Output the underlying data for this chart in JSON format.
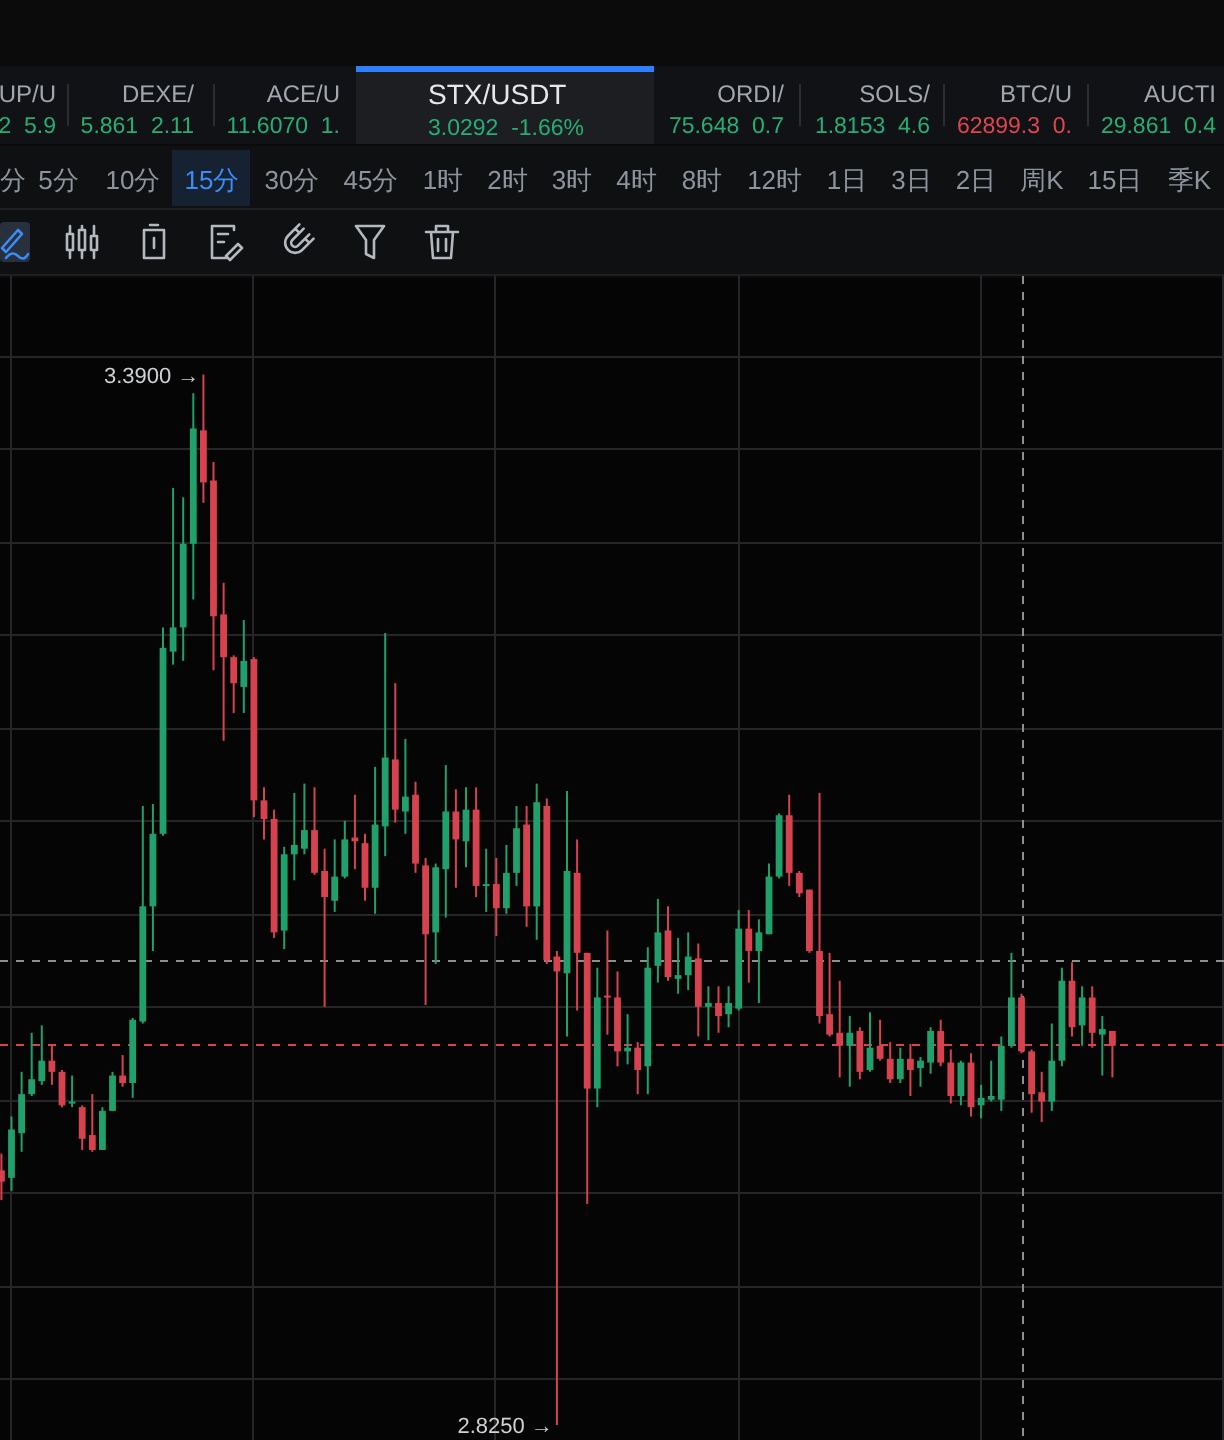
{
  "chart_data": {
    "type": "candlestick",
    "title": "STX/USDT",
    "subtitle": "3.0292  -1.66%",
    "categories": [
      null,
      null,
      null,
      null,
      null,
      null,
      null,
      null,
      null,
      null,
      null,
      null,
      null,
      null,
      null,
      null,
      null,
      null,
      null,
      null,
      null,
      null,
      null,
      null,
      null,
      null,
      null,
      null,
      null,
      null,
      null,
      null,
      null,
      null,
      null,
      null,
      null,
      null,
      null,
      null,
      null,
      null,
      null,
      null,
      null,
      null,
      null,
      null,
      null,
      null,
      null,
      null,
      null,
      null,
      null,
      null,
      null,
      null,
      null,
      null,
      null,
      null,
      null,
      null,
      null,
      null,
      null,
      null,
      null,
      null,
      null,
      null,
      null,
      null,
      null,
      null,
      null,
      null,
      null,
      null,
      null,
      null,
      null,
      null,
      null,
      null,
      null,
      null,
      null,
      null,
      null,
      null,
      null,
      null,
      null,
      null,
      null,
      null,
      null,
      null,
      null,
      null,
      null,
      null,
      null,
      null,
      null,
      null,
      null,
      null,
      null
    ],
    "ohlc": [
      [
        2.962,
        2.971,
        2.946,
        2.956
      ],
      [
        2.958,
        2.991,
        2.951,
        2.984
      ],
      [
        2.982,
        3.015,
        2.972,
        3.003
      ],
      [
        3.003,
        3.036,
        3.002,
        3.011
      ],
      [
        3.01,
        3.04,
        3.008,
        3.021
      ],
      [
        3.021,
        3.029,
        3.008,
        3.015
      ],
      [
        3.015,
        3.016,
        2.996,
        2.997
      ],
      [
        2.998,
        3.013,
        2.996,
        2.999
      ],
      [
        2.996,
        2.997,
        2.973,
        2.979
      ],
      [
        2.981,
        3.003,
        2.972,
        2.973
      ],
      [
        2.973,
        2.996,
        2.973,
        2.994
      ],
      [
        2.994,
        3.015,
        2.994,
        3.013
      ],
      [
        3.013,
        3.024,
        3.007,
        3.009
      ],
      [
        3.009,
        3.044,
        3.001,
        3.043
      ],
      [
        3.042,
        3.158,
        3.041,
        3.104
      ],
      [
        3.104,
        3.159,
        3.08,
        3.143
      ],
      [
        3.143,
        3.254,
        3.142,
        3.243
      ],
      [
        3.241,
        3.329,
        3.234,
        3.254
      ],
      [
        3.254,
        3.324,
        3.236,
        3.299
      ],
      [
        3.299,
        3.38,
        3.269,
        3.361
      ],
      [
        3.36,
        3.39,
        3.321,
        3.332
      ],
      [
        3.333,
        3.343,
        3.231,
        3.26
      ],
      [
        3.261,
        3.278,
        3.193,
        3.238
      ],
      [
        3.238,
        3.239,
        3.208,
        3.224
      ],
      [
        3.222,
        3.258,
        3.208,
        3.236
      ],
      [
        3.237,
        3.238,
        3.152,
        3.161
      ],
      [
        3.161,
        3.168,
        3.14,
        3.151
      ],
      [
        3.151,
        3.156,
        3.087,
        3.09
      ],
      [
        3.091,
        3.136,
        3.081,
        3.132
      ],
      [
        3.132,
        3.165,
        3.118,
        3.137
      ],
      [
        3.135,
        3.17,
        3.132,
        3.145
      ],
      [
        3.145,
        3.168,
        3.121,
        3.122
      ],
      [
        3.123,
        3.135,
        3.05,
        3.109
      ],
      [
        3.107,
        3.14,
        3.101,
        3.12
      ],
      [
        3.12,
        3.15,
        3.119,
        3.14
      ],
      [
        3.141,
        3.164,
        3.124,
        3.139
      ],
      [
        3.138,
        3.143,
        3.107,
        3.114
      ],
      [
        3.114,
        3.179,
        3.1,
        3.148
      ],
      [
        3.147,
        3.251,
        3.131,
        3.184
      ],
      [
        3.183,
        3.224,
        3.149,
        3.156
      ],
      [
        3.155,
        3.194,
        3.143,
        3.163
      ],
      [
        3.164,
        3.171,
        3.122,
        3.127
      ],
      [
        3.126,
        3.13,
        3.051,
        3.089
      ],
      [
        3.09,
        3.127,
        3.073,
        3.125
      ],
      [
        3.124,
        3.18,
        3.098,
        3.155
      ],
      [
        3.155,
        3.167,
        3.114,
        3.14
      ],
      [
        3.139,
        3.168,
        3.125,
        3.156
      ],
      [
        3.156,
        3.168,
        3.109,
        3.115
      ],
      [
        3.115,
        3.135,
        3.101,
        3.116
      ],
      [
        3.116,
        3.13,
        3.088,
        3.103
      ],
      [
        3.103,
        3.137,
        3.1,
        3.122
      ],
      [
        3.122,
        3.158,
        3.115,
        3.146
      ],
      [
        3.148,
        3.158,
        3.093,
        3.104
      ],
      [
        3.104,
        3.17,
        3.086,
        3.16
      ],
      [
        3.158,
        3.162,
        3.073,
        3.075
      ],
      [
        3.077,
        3.08,
        2.825,
        3.069
      ],
      [
        3.068,
        3.166,
        3.034,
        3.123
      ],
      [
        3.122,
        3.14,
        3.048,
        3.079
      ],
      [
        3.079,
        3.079,
        2.944,
        3.006
      ],
      [
        3.006,
        3.071,
        2.996,
        3.055
      ],
      [
        3.056,
        3.091,
        3.035,
        3.055
      ],
      [
        3.055,
        3.069,
        3.018,
        3.026
      ],
      [
        3.026,
        3.046,
        3.019,
        3.028
      ],
      [
        3.028,
        3.031,
        3.003,
        3.016
      ],
      [
        3.018,
        3.082,
        3.003,
        3.071
      ],
      [
        3.072,
        3.108,
        3.063,
        3.09
      ],
      [
        3.091,
        3.104,
        3.064,
        3.066
      ],
      [
        3.065,
        3.087,
        3.057,
        3.067
      ],
      [
        3.067,
        3.09,
        3.059,
        3.077
      ],
      [
        3.076,
        3.084,
        3.034,
        3.05
      ],
      [
        3.05,
        3.061,
        3.032,
        3.052
      ],
      [
        3.052,
        3.061,
        3.036,
        3.045
      ],
      [
        3.046,
        3.061,
        3.039,
        3.052
      ],
      [
        3.049,
        3.102,
        3.048,
        3.092
      ],
      [
        3.092,
        3.102,
        3.063,
        3.08
      ],
      [
        3.08,
        3.097,
        3.052,
        3.09
      ],
      [
        3.089,
        3.127,
        3.089,
        3.12
      ],
      [
        3.12,
        3.154,
        3.119,
        3.153
      ],
      [
        3.153,
        3.164,
        3.115,
        3.122
      ],
      [
        3.122,
        3.123,
        3.109,
        3.111
      ],
      [
        3.113,
        3.113,
        3.079,
        3.08
      ],
      [
        3.08,
        3.165,
        3.041,
        3.045
      ],
      [
        3.046,
        3.079,
        3.034,
        3.035
      ],
      [
        3.036,
        3.064,
        3.012,
        3.029
      ],
      [
        3.029,
        3.045,
        3.007,
        3.036
      ],
      [
        3.037,
        3.039,
        3.011,
        3.015
      ],
      [
        3.016,
        3.047,
        3.015,
        3.028
      ],
      [
        3.029,
        3.043,
        3.021,
        3.022
      ],
      [
        3.022,
        3.031,
        3.009,
        3.011
      ],
      [
        3.011,
        3.028,
        3.009,
        3.022
      ],
      [
        3.022,
        3.03,
        3.002,
        3.016
      ],
      [
        3.017,
        3.023,
        3.007,
        3.021
      ],
      [
        3.02,
        3.039,
        3.014,
        3.037
      ],
      [
        3.037,
        3.043,
        3.018,
        3.02
      ],
      [
        3.02,
        3.027,
        2.998,
        3.002
      ],
      [
        3.002,
        3.021,
        2.997,
        3.02
      ],
      [
        3.02,
        3.025,
        2.991,
        2.996
      ],
      [
        2.997,
        3.008,
        2.99,
        3.001
      ],
      [
        3.0,
        3.021,
        2.999,
        3.002
      ],
      [
        3.0,
        3.034,
        2.994,
        3.029
      ],
      [
        3.029,
        3.079,
        3.028,
        3.055
      ],
      [
        3.055,
        3.057,
        3.025,
        3.026
      ],
      [
        3.026,
        3.027,
        2.993,
        3.003
      ],
      [
        3.004,
        3.015,
        2.988,
        2.999
      ],
      [
        2.999,
        3.041,
        2.994,
        3.021
      ],
      [
        3.021,
        3.071,
        3.018,
        3.064
      ],
      [
        3.064,
        3.074,
        3.034,
        3.039
      ],
      [
        3.04,
        3.061,
        3.029,
        3.055
      ],
      [
        3.055,
        3.061,
        3.028,
        3.036
      ],
      [
        3.035,
        3.045,
        3.013,
        3.038
      ],
      [
        3.037,
        3.037,
        3.012,
        3.029
      ]
    ],
    "colors": [
      "#d6434e",
      "#22a06b",
      "#22a06b",
      "#22a06b",
      "#22a06b",
      "#d6434e",
      "#d6434e",
      "#22a06b",
      "#d6434e",
      "#d6434e",
      "#22a06b",
      "#22a06b",
      "#d6434e",
      "#22a06b",
      "#22a06b",
      "#22a06b",
      "#22a06b",
      "#22a06b",
      "#22a06b",
      "#22a06b",
      "#d6434e",
      "#d6434e",
      "#d6434e",
      "#d6434e",
      "#22a06b",
      "#d6434e",
      "#d6434e",
      "#d6434e",
      "#22a06b",
      "#22a06b",
      "#22a06b",
      "#d6434e",
      "#d6434e",
      "#22a06b",
      "#22a06b",
      "#d6434e",
      "#d6434e",
      "#22a06b",
      "#22a06b",
      "#d6434e",
      "#22a06b",
      "#d6434e",
      "#d6434e",
      "#22a06b",
      "#22a06b",
      "#d6434e",
      "#22a06b",
      "#d6434e",
      "#22a06b",
      "#d6434e",
      "#22a06b",
      "#22a06b",
      "#d6434e",
      "#22a06b",
      "#d6434e",
      "#d6434e",
      "#22a06b",
      "#d6434e",
      "#d6434e",
      "#22a06b",
      "#d6434e",
      "#d6434e",
      "#22a06b",
      "#d6434e",
      "#22a06b",
      "#22a06b",
      "#d6434e",
      "#22a06b",
      "#22a06b",
      "#d6434e",
      "#22a06b",
      "#d6434e",
      "#22a06b",
      "#22a06b",
      "#d6434e",
      "#22a06b",
      "#22a06b",
      "#22a06b",
      "#d6434e",
      "#d6434e",
      "#d6434e",
      "#d6434e",
      "#d6434e",
      "#d6434e",
      "#22a06b",
      "#d6434e",
      "#22a06b",
      "#d6434e",
      "#d6434e",
      "#22a06b",
      "#d6434e",
      "#22a06b",
      "#22a06b",
      "#d6434e",
      "#d6434e",
      "#22a06b",
      "#d6434e",
      "#22a06b",
      "#22a06b",
      "#22a06b",
      "#22a06b",
      "#d6434e",
      "#d6434e",
      "#d6434e",
      "#22a06b",
      "#22a06b",
      "#d6434e",
      "#22a06b",
      "#d6434e",
      "#22a06b",
      "#d6434e"
    ],
    "ylim": [
      2.817,
      3.443
    ],
    "yticks": [
      {
        "value": 2.85,
        "label": null
      },
      {
        "value": 2.9,
        "label": null
      },
      {
        "value": 2.95,
        "label": null
      },
      {
        "value": 3.0,
        "label": null
      },
      {
        "value": 3.05,
        "label": null
      },
      {
        "value": 3.1,
        "label": null
      },
      {
        "value": 3.15,
        "label": null
      },
      {
        "value": 3.2,
        "label": null
      },
      {
        "value": 3.25,
        "label": null
      },
      {
        "value": 3.3,
        "label": null
      },
      {
        "value": 3.35,
        "label": null
      },
      {
        "value": 3.4,
        "label": null
      }
    ],
    "grid": true,
    "ref_lines": [
      {
        "axis": "y",
        "value": 3.075,
        "color": "#8e8e8e",
        "line_style": "dashed"
      },
      {
        "axis": "y",
        "value": 3.03,
        "color": "#d6434e",
        "line_style": "dashed"
      }
    ],
    "annotations": [
      "UP/U",
      "2  5.9",
      "DEXE/",
      "5.861  2.11",
      "ACE/U",
      "11.6070  1.",
      "ORDI/",
      "75.648  0.7",
      "SOLS/",
      "1.8153  4.6",
      "BTC/U",
      "62899.3  0.",
      "AUCTI",
      "29.861  0.4",
      "分",
      "5分",
      "10分",
      "15分",
      "30分",
      "45分",
      "1时",
      "2时",
      "3时",
      "4时",
      "8时",
      "12时",
      "1日",
      "3日",
      "2日",
      "周K",
      "15日",
      "季K",
      "3.3900 →",
      "2.8250 →"
    ]
  }
}
